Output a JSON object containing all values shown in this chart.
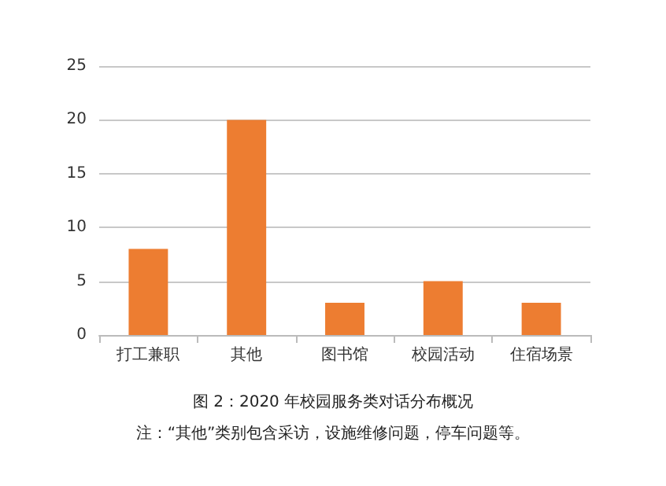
{
  "chart_data": {
    "type": "bar",
    "title": "图 2：2020 年校园服务类对话分布概况",
    "annotations": [
      "注：“其他”类别包含采访，设施维修问题，停车问题等。"
    ],
    "categories": [
      "打工兼职",
      "其他",
      "图书馆",
      "校园活动",
      "住宿场景"
    ],
    "values": [
      8,
      20,
      3,
      5,
      3
    ],
    "color": "#ed7d31",
    "ylim": [
      0,
      25
    ],
    "yticks": [
      0,
      5,
      10,
      15,
      20,
      25
    ],
    "grid": "y"
  }
}
